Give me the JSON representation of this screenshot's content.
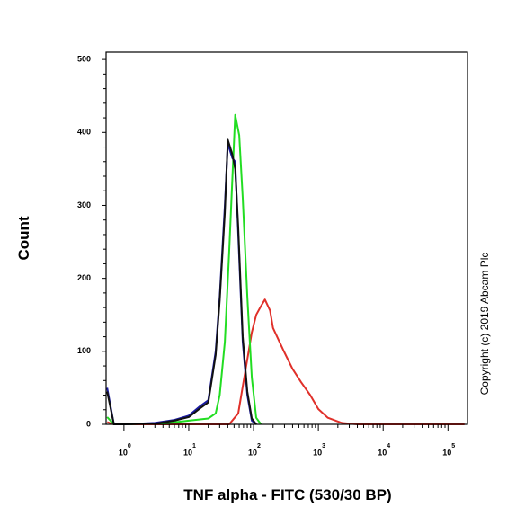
{
  "chart_data": {
    "type": "line",
    "x_label": "TNF alpha - FITC (530/30 BP)",
    "y_label": "Count",
    "annotation": "Copyright (c) 2019 Abcam Plc",
    "x_scale": "log",
    "xlim": [
      0.53,
      200000
    ],
    "ylim": [
      0,
      510
    ],
    "xticks": [
      {
        "value": 1,
        "label": "10",
        "exponent": "0"
      },
      {
        "value": 10,
        "label": "10",
        "exponent": "1"
      },
      {
        "value": 100,
        "label": "10",
        "exponent": "2"
      },
      {
        "value": 1000,
        "label": "10",
        "exponent": "3"
      },
      {
        "value": 10000,
        "label": "10",
        "exponent": "4"
      },
      {
        "value": 100000,
        "label": "10",
        "exponent": "5"
      }
    ],
    "yticks": [
      0,
      100,
      200,
      300,
      400,
      500
    ],
    "series": [
      {
        "color": "#e0302a",
        "x": [
          0.55,
          0.7,
          10,
          42,
          58,
          68,
          80,
          94,
          110,
          130,
          150,
          180,
          200,
          290,
          400,
          540,
          750,
          1000,
          1400,
          2300,
          4000,
          180000
        ],
        "values": [
          3,
          0,
          0,
          0,
          15,
          52,
          89,
          126,
          150,
          162,
          171,
          156,
          132,
          101,
          76,
          58,
          40,
          21,
          9,
          2,
          0,
          0
        ]
      },
      {
        "color": "#22dd22",
        "x": [
          0.55,
          0.7,
          1,
          5,
          10,
          20,
          26,
          30,
          36,
          42,
          47,
          52,
          60,
          68,
          80,
          94,
          110,
          130
        ],
        "values": [
          10,
          0,
          0,
          2,
          5,
          8,
          15,
          40,
          113,
          236,
          335,
          424,
          396,
          310,
          175,
          64,
          9,
          0
        ]
      },
      {
        "color": "#1a1aa0",
        "x": [
          0.55,
          0.7,
          1,
          3,
          6,
          10,
          15,
          20,
          26,
          30,
          36,
          40,
          47,
          52,
          58,
          68,
          80,
          94,
          110
        ],
        "values": [
          50,
          0,
          0,
          2,
          6,
          12,
          25,
          33,
          100,
          175,
          300,
          385,
          365,
          360,
          260,
          113,
          40,
          5,
          0
        ]
      },
      {
        "color": "#111111",
        "x": [
          0.55,
          0.7,
          1,
          3,
          6,
          10,
          15,
          20,
          26,
          30,
          36,
          40,
          47,
          52,
          58,
          68,
          80,
          94,
          110
        ],
        "values": [
          45,
          0,
          0,
          1,
          5,
          10,
          22,
          30,
          95,
          170,
          290,
          390,
          370,
          350,
          270,
          120,
          45,
          8,
          0
        ]
      }
    ]
  }
}
